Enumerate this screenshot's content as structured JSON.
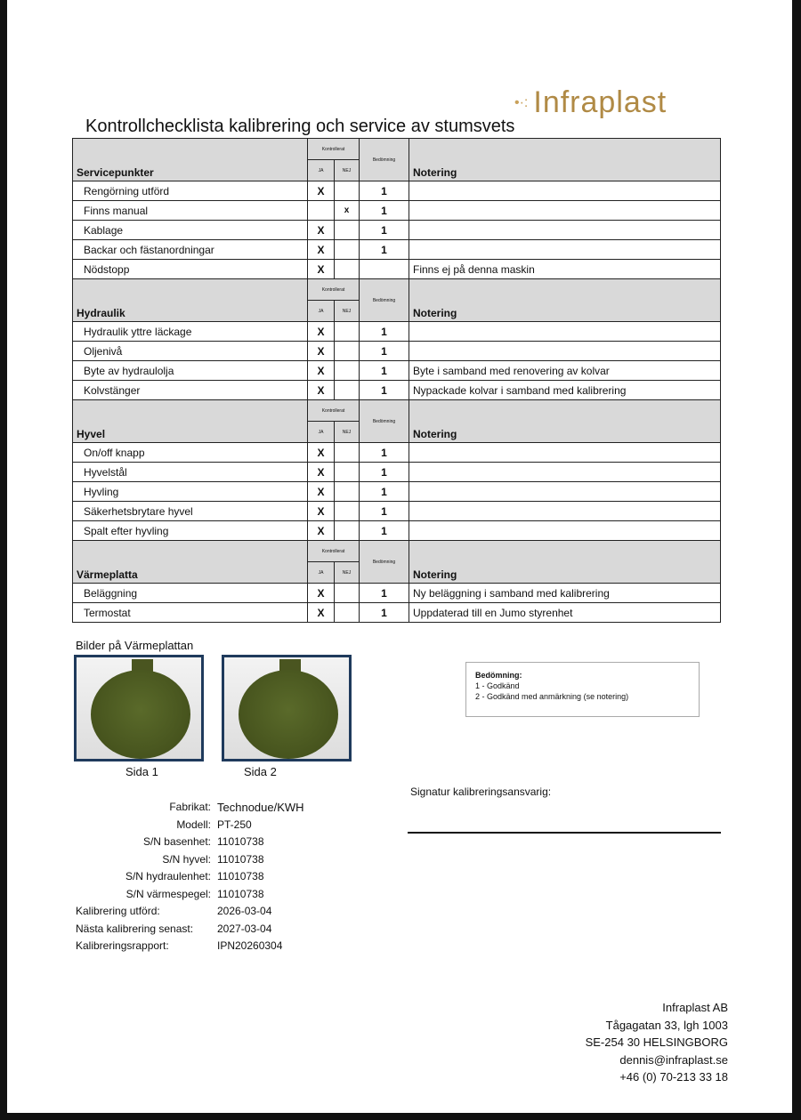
{
  "logo": "Infraplast",
  "title": "Kontrollchecklista kalibrering och service av stumsvets",
  "col_headers": {
    "kontrollerat": "Kontrollerat",
    "ja": "JA",
    "nej": "NEJ",
    "bedomning": "Bedömning",
    "notering": "Notering"
  },
  "sections": [
    {
      "name": "Servicepunkter",
      "rows": [
        {
          "item": "Rengörning utförd",
          "ja": "X",
          "nej": "",
          "bed": "1",
          "note": ""
        },
        {
          "item": "Finns manual",
          "ja": "",
          "nej": "x",
          "bed": "1",
          "note": ""
        },
        {
          "item": "Kablage",
          "ja": "X",
          "nej": "",
          "bed": "1",
          "note": ""
        },
        {
          "item": "Backar och fästanordningar",
          "ja": "X",
          "nej": "",
          "bed": "1",
          "note": ""
        },
        {
          "item": "Nödstopp",
          "ja": "X",
          "nej": "",
          "bed": "",
          "note": "Finns ej på denna maskin"
        }
      ]
    },
    {
      "name": "Hydraulik",
      "rows": [
        {
          "item": "Hydraulik yttre läckage",
          "ja": "X",
          "nej": "",
          "bed": "1",
          "note": ""
        },
        {
          "item": "Oljenivå",
          "ja": "X",
          "nej": "",
          "bed": "1",
          "note": ""
        },
        {
          "item": "Byte av hydraulolja",
          "ja": "X",
          "nej": "",
          "bed": "1",
          "note": "Byte i samband med renovering av kolvar"
        },
        {
          "item": "Kolvstänger",
          "ja": "X",
          "nej": "",
          "bed": "1",
          "note": "Nypackade kolvar i samband med kalibrering"
        }
      ]
    },
    {
      "name": "Hyvel",
      "rows": [
        {
          "item": "On/off knapp",
          "ja": "X",
          "nej": "",
          "bed": "1",
          "note": ""
        },
        {
          "item": "Hyvelstål",
          "ja": "X",
          "nej": "",
          "bed": "1",
          "note": ""
        },
        {
          "item": "Hyvling",
          "ja": "X",
          "nej": "",
          "bed": "1",
          "note": ""
        },
        {
          "item": "Säkerhetsbrytare hyvel",
          "ja": "X",
          "nej": "",
          "bed": "1",
          "note": ""
        },
        {
          "item": "Spalt efter hyvling",
          "ja": "X",
          "nej": "",
          "bed": "1",
          "note": ""
        }
      ]
    },
    {
      "name": "Värmeplatta",
      "rows": [
        {
          "item": "Beläggning",
          "ja": "X",
          "nej": "",
          "bed": "1",
          "note": "Ny beläggning i samband med kalibrering"
        },
        {
          "item": "Termostat",
          "ja": "X",
          "nej": "",
          "bed": "1",
          "note": "Uppdaterad till en Jumo styrenhet"
        }
      ]
    }
  ],
  "pictures": {
    "title": "Bilder på Värmeplattan",
    "captions": [
      "Sida 1",
      "Sida 2"
    ]
  },
  "legend": {
    "title": "Bedömning:",
    "items": [
      "1  - Godkänd",
      "2 - Godkänd med  anmärkning (se notering)"
    ]
  },
  "signature_label": "Signatur kalibreringsansvarig:",
  "info": [
    {
      "label": "Fabrikat:",
      "value": "Technodue/KWH",
      "align": "right"
    },
    {
      "label": "Modell:",
      "value": "PT-250",
      "align": "right"
    },
    {
      "label": "S/N basenhet:",
      "value": "11010738",
      "align": "right"
    },
    {
      "label": "S/N hyvel:",
      "value": "11010738",
      "align": "right"
    },
    {
      "label": "S/N hydraulenhet:",
      "value": "11010738",
      "align": "right"
    },
    {
      "label": "S/N värmespegel:",
      "value": "11010738",
      "align": "right"
    },
    {
      "label": "Kalibrering utförd:",
      "value": "2026-03-04",
      "align": "left"
    },
    {
      "label": "Nästa kalibrering senast:",
      "value": "2027-03-04",
      "align": "left"
    },
    {
      "label": "Kalibreringsrapport:",
      "value": "IPN20260304",
      "align": "left"
    }
  ],
  "footer": [
    "Infraplast AB",
    "Tågagatan 33, lgh 1003",
    "SE-254 30  HELSINGBORG",
    "dennis@infraplast.se",
    "+46 (0) 70-213 33 18"
  ]
}
